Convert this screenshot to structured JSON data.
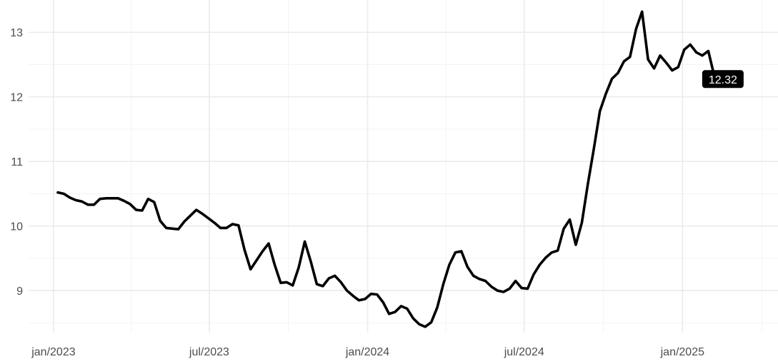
{
  "chart_data": {
    "type": "line",
    "title": "",
    "xlabel": "",
    "ylabel": "",
    "x_tick_labels": [
      {
        "date": "2023-01-01",
        "label": "jan/2023"
      },
      {
        "date": "2023-07-01",
        "label": "jul/2023"
      },
      {
        "date": "2024-01-01",
        "label": "jan/2024"
      },
      {
        "date": "2024-07-01",
        "label": "jul/2024"
      },
      {
        "date": "2025-01-01",
        "label": "jan/2025"
      }
    ],
    "y_ticks": [
      9,
      10,
      11,
      12,
      13
    ],
    "xlim": [
      "2022-12-03",
      "2025-04-22"
    ],
    "ylim": [
      8.35,
      13.5
    ],
    "grid": true,
    "last_value_label": "12.32",
    "series": [
      {
        "color": "#000000",
        "points": [
          [
            "2023-01-06",
            10.52
          ],
          [
            "2023-01-13",
            10.5
          ],
          [
            "2023-01-20",
            10.44
          ],
          [
            "2023-01-27",
            10.4
          ],
          [
            "2023-02-03",
            10.38
          ],
          [
            "2023-02-10",
            10.33
          ],
          [
            "2023-02-17",
            10.33
          ],
          [
            "2023-02-24",
            10.42
          ],
          [
            "2023-03-03",
            10.43
          ],
          [
            "2023-03-10",
            10.43
          ],
          [
            "2023-03-17",
            10.43
          ],
          [
            "2023-03-24",
            10.39
          ],
          [
            "2023-03-31",
            10.34
          ],
          [
            "2023-04-07",
            10.25
          ],
          [
            "2023-04-14",
            10.24
          ],
          [
            "2023-04-21",
            10.42
          ],
          [
            "2023-04-28",
            10.37
          ],
          [
            "2023-05-05",
            10.08
          ],
          [
            "2023-05-12",
            9.97
          ],
          [
            "2023-05-19",
            9.96
          ],
          [
            "2023-05-26",
            9.95
          ],
          [
            "2023-06-02",
            10.07
          ],
          [
            "2023-06-09",
            10.16
          ],
          [
            "2023-06-16",
            10.25
          ],
          [
            "2023-06-23",
            10.19
          ],
          [
            "2023-06-30",
            10.12
          ],
          [
            "2023-07-07",
            10.05
          ],
          [
            "2023-07-14",
            9.97
          ],
          [
            "2023-07-21",
            9.97
          ],
          [
            "2023-07-28",
            10.03
          ],
          [
            "2023-08-04",
            10.01
          ],
          [
            "2023-08-11",
            9.63
          ],
          [
            "2023-08-18",
            9.33
          ],
          [
            "2023-08-25",
            9.47
          ],
          [
            "2023-09-01",
            9.61
          ],
          [
            "2023-09-08",
            9.73
          ],
          [
            "2023-09-15",
            9.4
          ],
          [
            "2023-09-22",
            9.12
          ],
          [
            "2023-09-29",
            9.13
          ],
          [
            "2023-10-06",
            9.08
          ],
          [
            "2023-10-13",
            9.36
          ],
          [
            "2023-10-20",
            9.76
          ],
          [
            "2023-10-27",
            9.45
          ],
          [
            "2023-11-03",
            9.1
          ],
          [
            "2023-11-10",
            9.07
          ],
          [
            "2023-11-17",
            9.19
          ],
          [
            "2023-11-24",
            9.23
          ],
          [
            "2023-12-01",
            9.13
          ],
          [
            "2023-12-08",
            9.0
          ],
          [
            "2023-12-15",
            8.92
          ],
          [
            "2023-12-22",
            8.85
          ],
          [
            "2023-12-29",
            8.87
          ],
          [
            "2024-01-05",
            8.95
          ],
          [
            "2024-01-12",
            8.94
          ],
          [
            "2024-01-19",
            8.82
          ],
          [
            "2024-01-26",
            8.64
          ],
          [
            "2024-02-02",
            8.67
          ],
          [
            "2024-02-09",
            8.76
          ],
          [
            "2024-02-16",
            8.72
          ],
          [
            "2024-02-23",
            8.57
          ],
          [
            "2024-03-01",
            8.48
          ],
          [
            "2024-03-08",
            8.44
          ],
          [
            "2024-03-15",
            8.51
          ],
          [
            "2024-03-22",
            8.74
          ],
          [
            "2024-03-29",
            9.1
          ],
          [
            "2024-04-05",
            9.4
          ],
          [
            "2024-04-12",
            9.59
          ],
          [
            "2024-04-19",
            9.61
          ],
          [
            "2024-04-26",
            9.37
          ],
          [
            "2024-05-03",
            9.23
          ],
          [
            "2024-05-10",
            9.18
          ],
          [
            "2024-05-17",
            9.15
          ],
          [
            "2024-05-24",
            9.06
          ],
          [
            "2024-05-31",
            9.0
          ],
          [
            "2024-06-07",
            8.98
          ],
          [
            "2024-06-14",
            9.03
          ],
          [
            "2024-06-21",
            9.15
          ],
          [
            "2024-06-28",
            9.04
          ],
          [
            "2024-07-05",
            9.03
          ],
          [
            "2024-07-12",
            9.25
          ],
          [
            "2024-07-19",
            9.4
          ],
          [
            "2024-07-26",
            9.51
          ],
          [
            "2024-08-02",
            9.59
          ],
          [
            "2024-08-09",
            9.62
          ],
          [
            "2024-08-16",
            9.96
          ],
          [
            "2024-08-23",
            10.1
          ],
          [
            "2024-08-30",
            9.71
          ],
          [
            "2024-09-06",
            10.05
          ],
          [
            "2024-09-13",
            10.65
          ],
          [
            "2024-09-20",
            11.2
          ],
          [
            "2024-09-27",
            11.78
          ],
          [
            "2024-10-04",
            12.05
          ],
          [
            "2024-10-11",
            12.28
          ],
          [
            "2024-10-18",
            12.37
          ],
          [
            "2024-10-25",
            12.55
          ],
          [
            "2024-11-01",
            12.62
          ],
          [
            "2024-11-08",
            13.05
          ],
          [
            "2024-11-15",
            13.32
          ],
          [
            "2024-11-22",
            12.58
          ],
          [
            "2024-11-29",
            12.44
          ],
          [
            "2024-12-06",
            12.64
          ],
          [
            "2024-12-13",
            12.53
          ],
          [
            "2024-12-20",
            12.41
          ],
          [
            "2024-12-27",
            12.46
          ],
          [
            "2025-01-03",
            12.73
          ],
          [
            "2025-01-10",
            12.81
          ],
          [
            "2025-01-17",
            12.69
          ],
          [
            "2025-01-24",
            12.64
          ],
          [
            "2025-01-31",
            12.71
          ],
          [
            "2025-02-07",
            12.32
          ]
        ]
      }
    ]
  }
}
